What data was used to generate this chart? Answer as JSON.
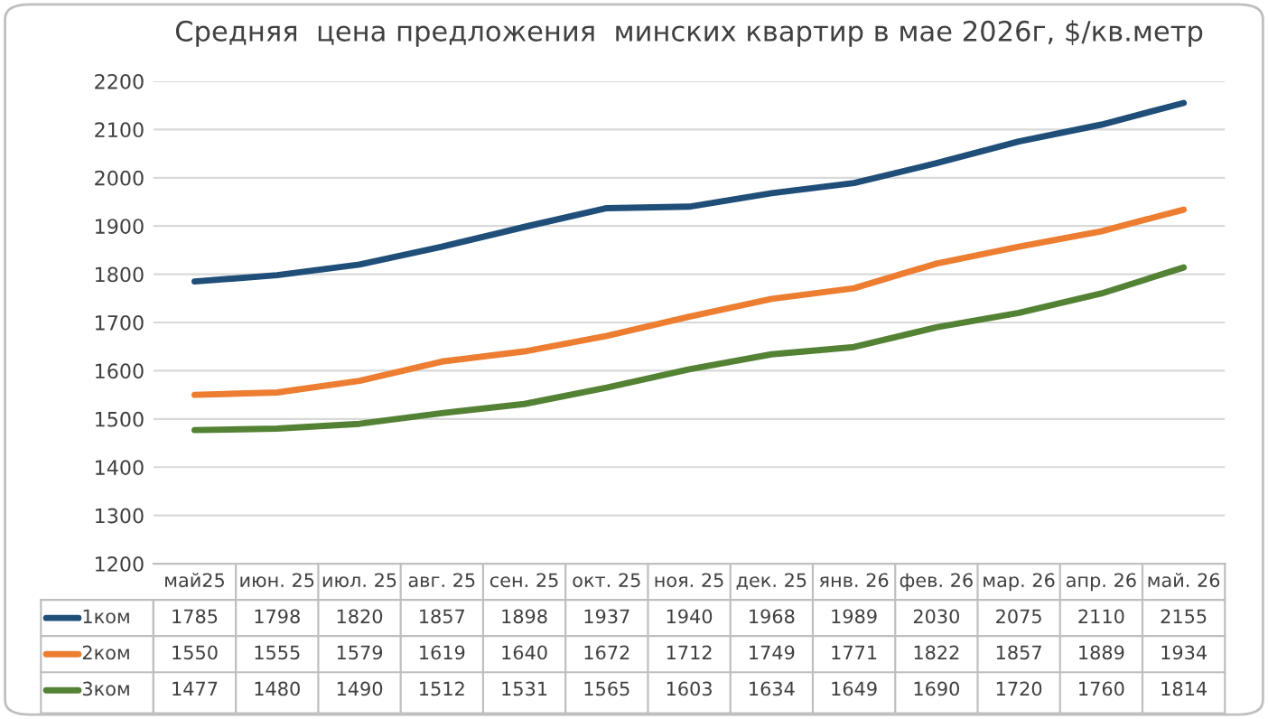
{
  "chart_data": {
    "type": "line",
    "title": "Средняя  цена предложения  минских квартир в мае 2026г, $/кв.метр",
    "categories": [
      "май25",
      "июн. 25",
      "июл. 25",
      "авг. 25",
      "сен. 25",
      "окт. 25",
      "ноя. 25",
      "дек. 25",
      "янв. 26",
      "фев. 26",
      "мар. 26",
      "апр. 26",
      "май. 26"
    ],
    "series": [
      {
        "name": "1ком",
        "color": "#1f4e79",
        "values": [
          1785,
          1798,
          1820,
          1857,
          1898,
          1937,
          1940,
          1968,
          1989,
          2030,
          2075,
          2110,
          2155
        ]
      },
      {
        "name": "2ком",
        "color": "#ed7d31",
        "values": [
          1550,
          1555,
          1579,
          1619,
          1640,
          1672,
          1712,
          1749,
          1771,
          1822,
          1857,
          1889,
          1934
        ]
      },
      {
        "name": "3ком",
        "color": "#548235",
        "values": [
          1477,
          1480,
          1490,
          1512,
          1531,
          1565,
          1603,
          1634,
          1649,
          1690,
          1720,
          1760,
          1814
        ]
      }
    ],
    "ylim": [
      1200,
      2200
    ],
    "yticks": [
      1200,
      1300,
      1400,
      1500,
      1600,
      1700,
      1800,
      1900,
      2000,
      2100,
      2200
    ],
    "grid": "y",
    "legend": "bottom",
    "data_labels": true,
    "line_style": "solid",
    "marker": "none"
  }
}
